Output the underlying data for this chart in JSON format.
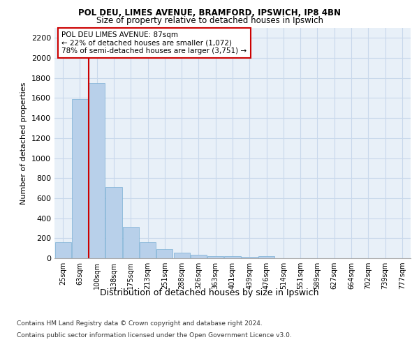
{
  "title1": "POL DEU, LIMES AVENUE, BRAMFORD, IPSWICH, IP8 4BN",
  "title2": "Size of property relative to detached houses in Ipswich",
  "xlabel": "Distribution of detached houses by size in Ipswich",
  "ylabel": "Number of detached properties",
  "categories": [
    "25sqm",
    "63sqm",
    "100sqm",
    "138sqm",
    "175sqm",
    "213sqm",
    "251sqm",
    "288sqm",
    "326sqm",
    "363sqm",
    "401sqm",
    "439sqm",
    "476sqm",
    "514sqm",
    "551sqm",
    "589sqm",
    "627sqm",
    "664sqm",
    "702sqm",
    "739sqm",
    "777sqm"
  ],
  "values": [
    160,
    1590,
    1750,
    710,
    315,
    160,
    90,
    55,
    35,
    22,
    18,
    15,
    20,
    0,
    0,
    0,
    0,
    0,
    0,
    0,
    0
  ],
  "bar_color": "#b8d0ea",
  "bar_edge_color": "#7aafd4",
  "grid_color": "#c8d8eb",
  "bg_color": "#e8f0f8",
  "annotation_text": "POL DEU LIMES AVENUE: 87sqm\n← 22% of detached houses are smaller (1,072)\n78% of semi-detached houses are larger (3,751) →",
  "vline_color": "#cc0000",
  "annotation_box_edge": "#cc0000",
  "footer1": "Contains HM Land Registry data © Crown copyright and database right 2024.",
  "footer2": "Contains public sector information licensed under the Open Government Licence v3.0.",
  "ylim": [
    0,
    2300
  ],
  "yticks": [
    0,
    200,
    400,
    600,
    800,
    1000,
    1200,
    1400,
    1600,
    1800,
    2000,
    2200
  ]
}
